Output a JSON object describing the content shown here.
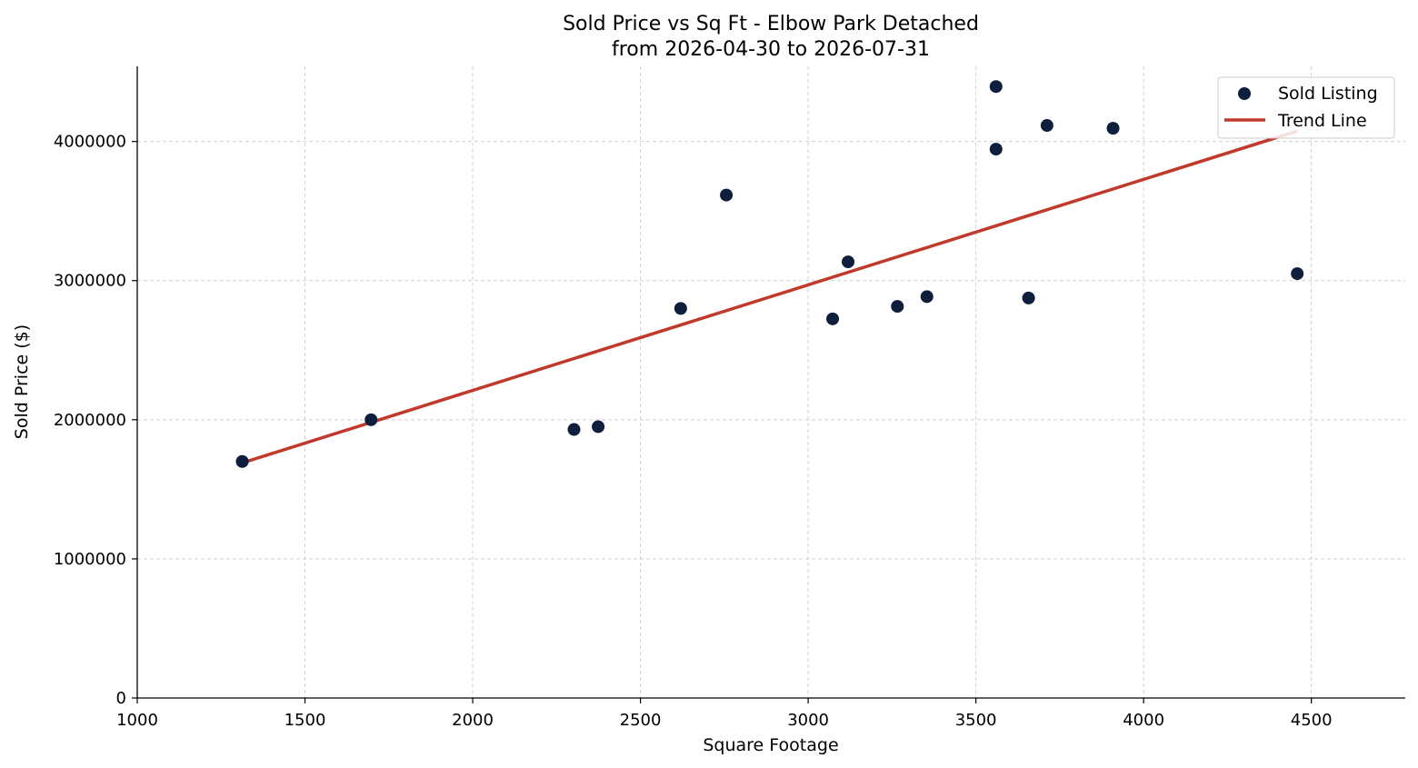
{
  "chart_data": {
    "type": "scatter",
    "title": "Sold Price vs Sq Ft - Elbow Park Detached",
    "subtitle": "from 2026-04-30 to 2026-07-31",
    "xlabel": "Square Footage",
    "ylabel": "Sold Price ($)",
    "xlim": [
      1000,
      4780
    ],
    "ylim": [
      0,
      4540000
    ],
    "x_ticks": [
      "1000",
      "1500",
      "2000",
      "2500",
      "3000",
      "3500",
      "4000",
      "4500"
    ],
    "y_ticks": [
      "0",
      "1000000",
      "2000000",
      "3000000",
      "4000000"
    ],
    "grid": true,
    "legend_position": "top-right",
    "series": [
      {
        "name": "Sold Listing",
        "kind": "scatter",
        "color": "#0d1f3c",
        "points": [
          [
            1313,
            1700000
          ],
          [
            1697,
            2000000
          ],
          [
            2302,
            1930000
          ],
          [
            2374,
            1950000
          ],
          [
            2620,
            2800000
          ],
          [
            2756,
            3615000
          ],
          [
            3073,
            2725000
          ],
          [
            3119,
            3135000
          ],
          [
            3266,
            2815000
          ],
          [
            3354,
            2885000
          ],
          [
            3560,
            4395000
          ],
          [
            3560,
            3945000
          ],
          [
            3657,
            2875000
          ],
          [
            3712,
            4115000
          ],
          [
            3909,
            4095000
          ],
          [
            4458,
            3050000
          ]
        ]
      },
      {
        "name": "Trend Line",
        "kind": "line",
        "color": "#c0392b",
        "points": [
          [
            1313,
            1690000
          ],
          [
            4458,
            4075000
          ]
        ]
      }
    ]
  }
}
